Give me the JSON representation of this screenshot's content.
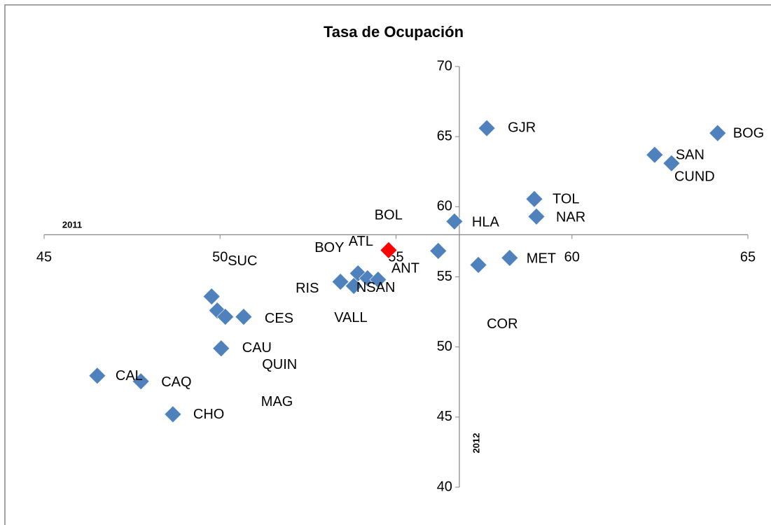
{
  "chart_data": {
    "type": "scatter",
    "title": "Tasa de Ocupación",
    "x_label": "2011",
    "y_label": "2012",
    "labels": [
      "GJR",
      "BOG",
      "SAN",
      "CUND",
      "TOL",
      "NAR",
      "HLA",
      "BOL",
      "ANT",
      "BOY",
      "ATL",
      "RIS",
      "NSAN",
      "VALL",
      "COR",
      "MET",
      "SUC",
      "QUIN",
      "MAG",
      "CES",
      "CAU",
      "CAL",
      "CAQ",
      "CHO"
    ],
    "x": [
      57.58,
      64.14,
      62.35,
      62.83,
      58.93,
      58.99,
      56.66,
      56.2,
      54.79,
      53.92,
      54.19,
      53.42,
      54.49,
      53.8,
      57.34,
      58.23,
      49.76,
      49.92,
      50.15,
      50.67,
      50.03,
      46.51,
      47.75,
      48.66
    ],
    "y": [
      65.6,
      65.25,
      63.7,
      63.1,
      60.55,
      59.3,
      58.95,
      56.85,
      56.9,
      55.25,
      54.9,
      54.65,
      54.8,
      54.35,
      55.85,
      56.35,
      53.6,
      52.6,
      52.15,
      52.15,
      49.9,
      47.95,
      47.55,
      45.2
    ],
    "point_colors": [
      "#4f81bd",
      "#4f81bd",
      "#4f81bd",
      "#4f81bd",
      "#4f81bd",
      "#4f81bd",
      "#4f81bd",
      "#4f81bd",
      "#ff0000",
      "#4f81bd",
      "#4f81bd",
      "#4f81bd",
      "#4f81bd",
      "#4f81bd",
      "#4f81bd",
      "#4f81bd",
      "#4f81bd",
      "#4f81bd",
      "#4f81bd",
      "#4f81bd",
      "#4f81bd",
      "#4f81bd",
      "#4f81bd",
      "#4f81bd"
    ],
    "xlim": [
      45,
      65
    ],
    "ylim": [
      40,
      70
    ],
    "xticks": [
      45,
      50,
      55,
      60,
      65
    ],
    "yticks": [
      40,
      45,
      50,
      55,
      60,
      65,
      70
    ],
    "x_axis_at_y": 58,
    "y_axis_at_x": 56.8
  }
}
